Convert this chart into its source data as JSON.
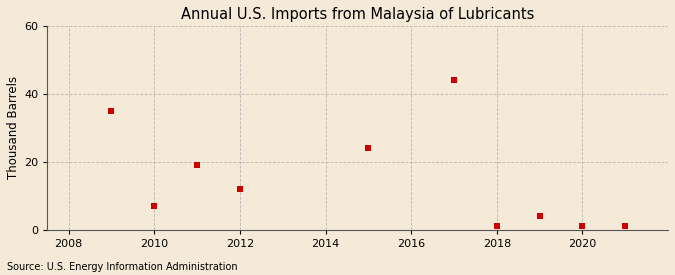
{
  "title": "Annual U.S. Imports from Malaysia of Lubricants",
  "ylabel": "Thousand Barrels",
  "source": "Source: U.S. Energy Information Administration",
  "years": [
    2009,
    2010,
    2011,
    2012,
    2015,
    2017,
    2018,
    2019,
    2020,
    2021
  ],
  "values": [
    35,
    7,
    19,
    12,
    24,
    44,
    1,
    4,
    1,
    1
  ],
  "xlim": [
    2007.5,
    2022
  ],
  "ylim": [
    0,
    60
  ],
  "xticks": [
    2008,
    2010,
    2012,
    2014,
    2016,
    2018,
    2020
  ],
  "yticks": [
    0,
    20,
    40,
    60
  ],
  "marker_color": "#cc0000",
  "marker": "s",
  "marker_size": 4.5,
  "bg_color": "#f5ead8",
  "plot_bg_color": "#f5ead8",
  "grid_color": "#aaaaaa",
  "title_fontsize": 10.5,
  "title_fontweight": "normal",
  "axis_label_fontsize": 8.5,
  "tick_fontsize": 8,
  "source_fontsize": 7
}
